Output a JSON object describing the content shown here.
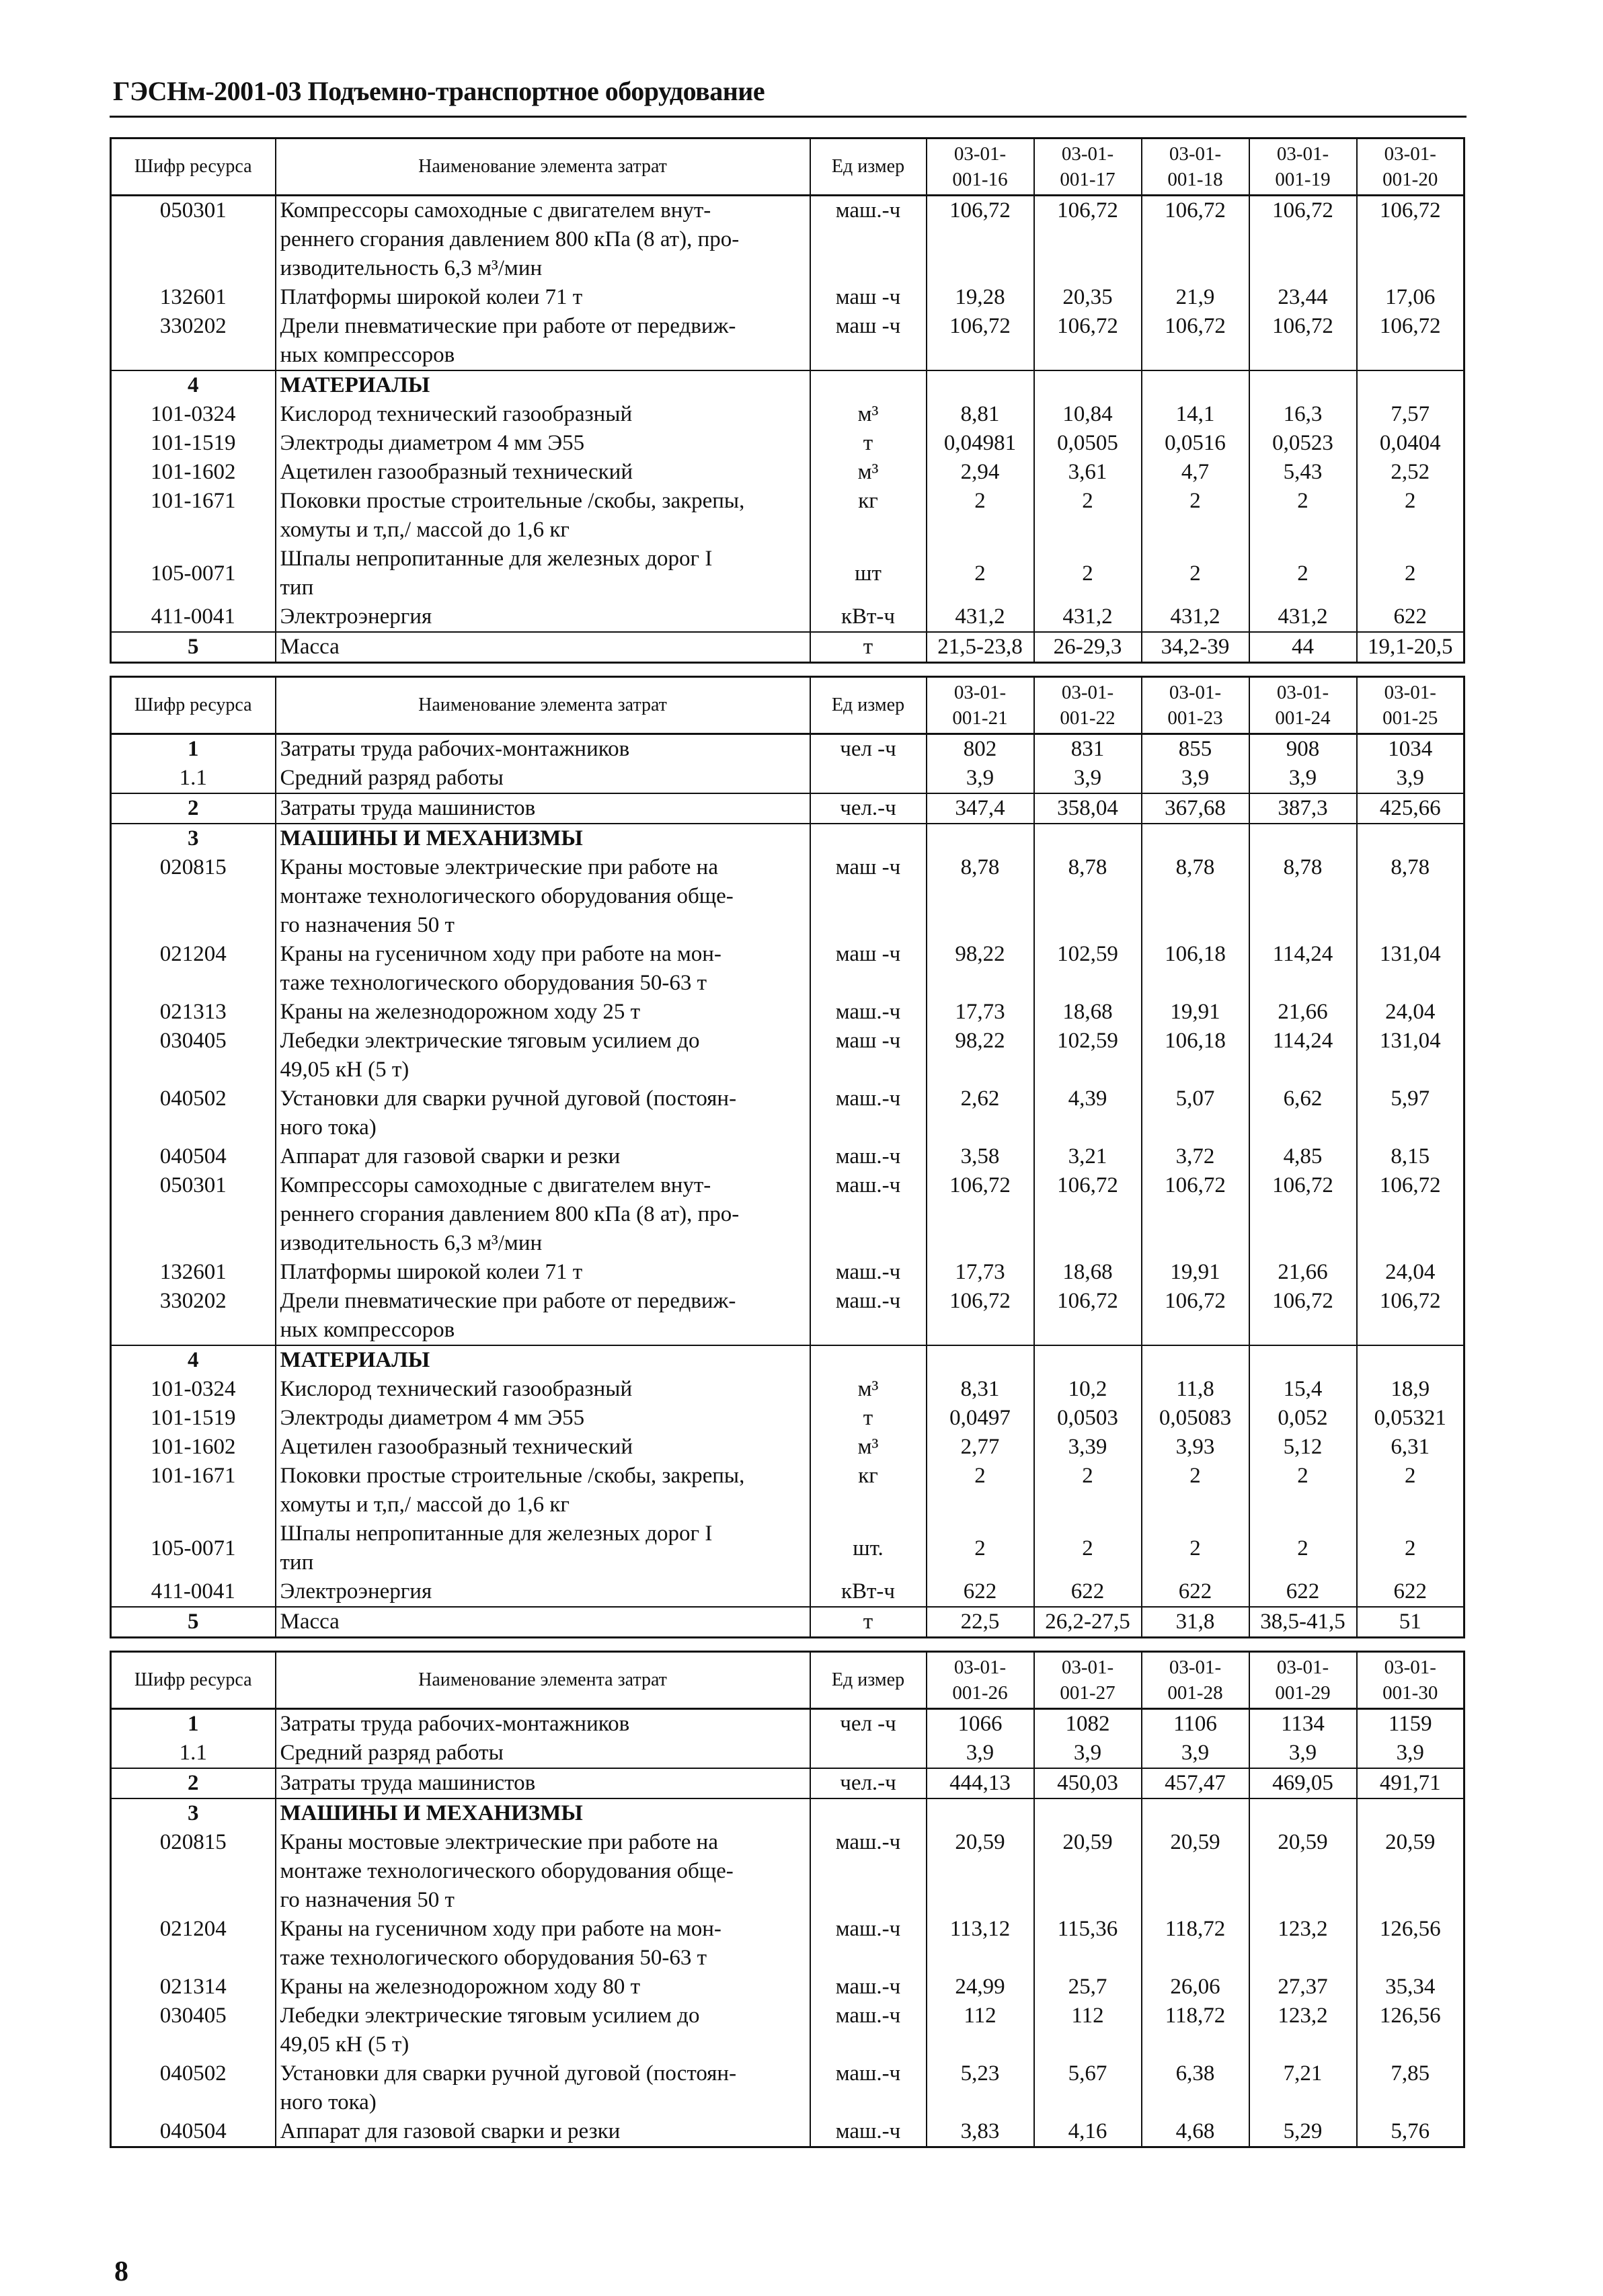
{
  "header": {
    "title": "ГЭСНм-2001-03 Подъемно-транспортное оборудование"
  },
  "page_number": "8",
  "column_headers": {
    "code": "Шифр ресурса",
    "name": "Наименование элемента затрат",
    "unit": "Ед измер"
  },
  "tables": [
    {
      "columns": [
        "03-01-\n001-16",
        "03-01-\n001-17",
        "03-01-\n001-18",
        "03-01-\n001-19",
        "03-01-\n001-20"
      ],
      "rows": [
        {
          "code": "050301",
          "name": "Компрессоры самоходные с двигателем внут-\nреннего сгорания давлением 800 кПа (8 ат), про-\nизводительность 6,3 м³/мин",
          "unit": "маш.-ч",
          "values": [
            "106,72",
            "106,72",
            "106,72",
            "106,72",
            "106,72"
          ],
          "group": true
        },
        {
          "code": "132601",
          "name": "Платформы широкой колеи 71 т",
          "unit": "маш -ч",
          "values": [
            "19,28",
            "20,35",
            "21,9",
            "23,44",
            "17,06"
          ]
        },
        {
          "code": "330202",
          "name": "Дрели пневматические при работе от передвиж-\nных компрессоров",
          "unit": "маш -ч",
          "values": [
            "106,72",
            "106,72",
            "106,72",
            "106,72",
            "106,72"
          ]
        },
        {
          "code": "4",
          "name": "МАТЕРИАЛЫ",
          "unit": "",
          "values": [
            "",
            "",
            "",
            "",
            ""
          ],
          "group": true,
          "section": true
        },
        {
          "code": "101-0324",
          "name": "Кислород технический газообразный",
          "unit": "м³",
          "values": [
            "8,81",
            "10,84",
            "14,1",
            "16,3",
            "7,57"
          ]
        },
        {
          "code": "101-1519",
          "name": "Электроды диаметром 4 мм Э55",
          "unit": "т",
          "values": [
            "0,04981",
            "0,0505",
            "0,0516",
            "0,0523",
            "0,0404"
          ]
        },
        {
          "code": "101-1602",
          "name": "Ацетилен газообразный технический",
          "unit": "м³",
          "values": [
            "2,94",
            "3,61",
            "4,7",
            "5,43",
            "2,52"
          ]
        },
        {
          "code": "101-1671",
          "name": "Поковки простые строительные /скобы, закрепы,\nхомуты и т,п,/ массой до 1,6 кг",
          "unit": "кг",
          "values": [
            "2",
            "2",
            "2",
            "2",
            "2"
          ]
        },
        {
          "code": "105-0071",
          "name": "Шпалы непропитанные для железных дорог I\nтип",
          "unit": "шт",
          "values": [
            "2",
            "2",
            "2",
            "2",
            "2"
          ],
          "mid": true
        },
        {
          "code": "411-0041",
          "name": "Электроэнергия",
          "unit": "кВт-ч",
          "values": [
            "431,2",
            "431,2",
            "431,2",
            "431,2",
            "622"
          ]
        },
        {
          "code": "5",
          "name": "Масса",
          "unit": "т",
          "values": [
            "21,5-23,8",
            "26-29,3",
            "34,2-39",
            "44",
            "19,1-20,5"
          ],
          "group": true,
          "section": true
        }
      ]
    },
    {
      "columns": [
        "03-01-\n001-21",
        "03-01-\n001-22",
        "03-01-\n001-23",
        "03-01-\n001-24",
        "03-01-\n001-25"
      ],
      "rows": [
        {
          "code": "1",
          "name": "Затраты труда рабочих-монтажников",
          "unit": "чел -ч",
          "values": [
            "802",
            "831",
            "855",
            "908",
            "1034"
          ],
          "group": true,
          "section": true
        },
        {
          "code": "1.1",
          "name": "Средний разряд работы",
          "unit": "",
          "values": [
            "3,9",
            "3,9",
            "3,9",
            "3,9",
            "3,9"
          ]
        },
        {
          "code": "2",
          "name": "Затраты труда машинистов",
          "unit": "чел.-ч",
          "values": [
            "347,4",
            "358,04",
            "367,68",
            "387,3",
            "425,66"
          ],
          "group": true,
          "section": true
        },
        {
          "code": "3",
          "name": "МАШИНЫ И МЕХАНИЗМЫ",
          "unit": "",
          "values": [
            "",
            "",
            "",
            "",
            ""
          ],
          "group": true,
          "section": true
        },
        {
          "code": "020815",
          "name": "Краны мостовые электрические при работе на\nмонтаже технологического оборудования обще-\nго назначения 50 т",
          "unit": "маш -ч",
          "values": [
            "8,78",
            "8,78",
            "8,78",
            "8,78",
            "8,78"
          ]
        },
        {
          "code": "021204",
          "name": "Краны на гусеничном ходу при работе на мон-\nтаже технологического оборудования 50-63 т",
          "unit": "маш -ч",
          "values": [
            "98,22",
            "102,59",
            "106,18",
            "114,24",
            "131,04"
          ]
        },
        {
          "code": "021313",
          "name": "Краны на железнодорожном ходу 25 т",
          "unit": "маш.-ч",
          "values": [
            "17,73",
            "18,68",
            "19,91",
            "21,66",
            "24,04"
          ]
        },
        {
          "code": "030405",
          "name": "Лебедки электрические тяговым усилием до\n49,05 кН (5 т)",
          "unit": "маш -ч",
          "values": [
            "98,22",
            "102,59",
            "106,18",
            "114,24",
            "131,04"
          ]
        },
        {
          "code": "040502",
          "name": "Установки для сварки ручной дуговой (постоян-\nного тока)",
          "unit": "маш.-ч",
          "values": [
            "2,62",
            "4,39",
            "5,07",
            "6,62",
            "5,97"
          ]
        },
        {
          "code": "040504",
          "name": "Аппарат для газовой сварки и резки",
          "unit": "маш.-ч",
          "values": [
            "3,58",
            "3,21",
            "3,72",
            "4,85",
            "8,15"
          ]
        },
        {
          "code": "050301",
          "name": "Компрессоры самоходные с двигателем внут-\nреннего сгорания давлением 800 кПа (8 ат), про-\nизводительность 6,3 м³/мин",
          "unit": "маш.-ч",
          "values": [
            "106,72",
            "106,72",
            "106,72",
            "106,72",
            "106,72"
          ]
        },
        {
          "code": "132601",
          "name": "Платформы широкой колеи 71 т",
          "unit": "маш.-ч",
          "values": [
            "17,73",
            "18,68",
            "19,91",
            "21,66",
            "24,04"
          ]
        },
        {
          "code": "330202",
          "name": "Дрели пневматические при работе от передвиж-\nных компрессоров",
          "unit": "маш.-ч",
          "values": [
            "106,72",
            "106,72",
            "106,72",
            "106,72",
            "106,72"
          ]
        },
        {
          "code": "4",
          "name": "МАТЕРИАЛЫ",
          "unit": "",
          "values": [
            "",
            "",
            "",
            "",
            ""
          ],
          "group": true,
          "section": true
        },
        {
          "code": "101-0324",
          "name": "Кислород технический газообразный",
          "unit": "м³",
          "values": [
            "8,31",
            "10,2",
            "11,8",
            "15,4",
            "18,9"
          ]
        },
        {
          "code": "101-1519",
          "name": "Электроды диаметром 4 мм Э55",
          "unit": "т",
          "values": [
            "0,0497",
            "0,0503",
            "0,05083",
            "0,052",
            "0,05321"
          ]
        },
        {
          "code": "101-1602",
          "name": "Ацетилен газообразный технический",
          "unit": "м³",
          "values": [
            "2,77",
            "3,39",
            "3,93",
            "5,12",
            "6,31"
          ]
        },
        {
          "code": "101-1671",
          "name": "Поковки простые строительные /скобы, закрепы,\nхомуты и т,п,/ массой до 1,6 кг",
          "unit": "кг",
          "values": [
            "2",
            "2",
            "2",
            "2",
            "2"
          ]
        },
        {
          "code": "105-0071",
          "name": "Шпалы непропитанные для железных дорог I\nтип",
          "unit": "шт.",
          "values": [
            "2",
            "2",
            "2",
            "2",
            "2"
          ],
          "mid": true
        },
        {
          "code": "411-0041",
          "name": "Электроэнергия",
          "unit": "кВт-ч",
          "values": [
            "622",
            "622",
            "622",
            "622",
            "622"
          ]
        },
        {
          "code": "5",
          "name": "Масса",
          "unit": "т",
          "values": [
            "22,5",
            "26,2-27,5",
            "31,8",
            "38,5-41,5",
            "51"
          ],
          "group": true,
          "section": true
        }
      ]
    },
    {
      "columns": [
        "03-01-\n001-26",
        "03-01-\n001-27",
        "03-01-\n001-28",
        "03-01-\n001-29",
        "03-01-\n001-30"
      ],
      "rows": [
        {
          "code": "1",
          "name": "Затраты труда рабочих-монтажников",
          "unit": "чел -ч",
          "values": [
            "1066",
            "1082",
            "1106",
            "1134",
            "1159"
          ],
          "group": true,
          "section": true
        },
        {
          "code": "1.1",
          "name": "Средний разряд работы",
          "unit": "",
          "values": [
            "3,9",
            "3,9",
            "3,9",
            "3,9",
            "3,9"
          ]
        },
        {
          "code": "2",
          "name": "Затраты труда машинистов",
          "unit": "чел.-ч",
          "values": [
            "444,13",
            "450,03",
            "457,47",
            "469,05",
            "491,71"
          ],
          "group": true,
          "section": true
        },
        {
          "code": "3",
          "name": "МАШИНЫ И МЕХАНИЗМЫ",
          "unit": "",
          "values": [
            "",
            "",
            "",
            "",
            ""
          ],
          "group": true,
          "section": true
        },
        {
          "code": "020815",
          "name": "Краны мостовые электрические при работе на\nмонтаже технологического оборудования обще-\nго назначения 50 т",
          "unit": "маш.-ч",
          "values": [
            "20,59",
            "20,59",
            "20,59",
            "20,59",
            "20,59"
          ]
        },
        {
          "code": "021204",
          "name": "Краны на гусеничном ходу при работе на мон-\nтаже технологического оборудования 50-63 т",
          "unit": "маш.-ч",
          "values": [
            "113,12",
            "115,36",
            "118,72",
            "123,2",
            "126,56"
          ]
        },
        {
          "code": "021314",
          "name": "Краны на железнодорожном ходу 80 т",
          "unit": "маш.-ч",
          "values": [
            "24,99",
            "25,7",
            "26,06",
            "27,37",
            "35,34"
          ]
        },
        {
          "code": "030405",
          "name": "Лебедки электрические тяговым усилием до\n49,05 кН (5 т)",
          "unit": "маш.-ч",
          "values": [
            "112",
            "112",
            "118,72",
            "123,2",
            "126,56"
          ]
        },
        {
          "code": "040502",
          "name": "Установки для сварки ручной дуговой (постоян-\nного тока)",
          "unit": "маш.-ч",
          "values": [
            "5,23",
            "5,67",
            "6,38",
            "7,21",
            "7,85"
          ]
        },
        {
          "code": "040504",
          "name": "Аппарат для газовой сварки и резки",
          "unit": "маш.-ч",
          "values": [
            "3,83",
            "4,16",
            "4,68",
            "5,29",
            "5,76"
          ]
        }
      ]
    }
  ]
}
